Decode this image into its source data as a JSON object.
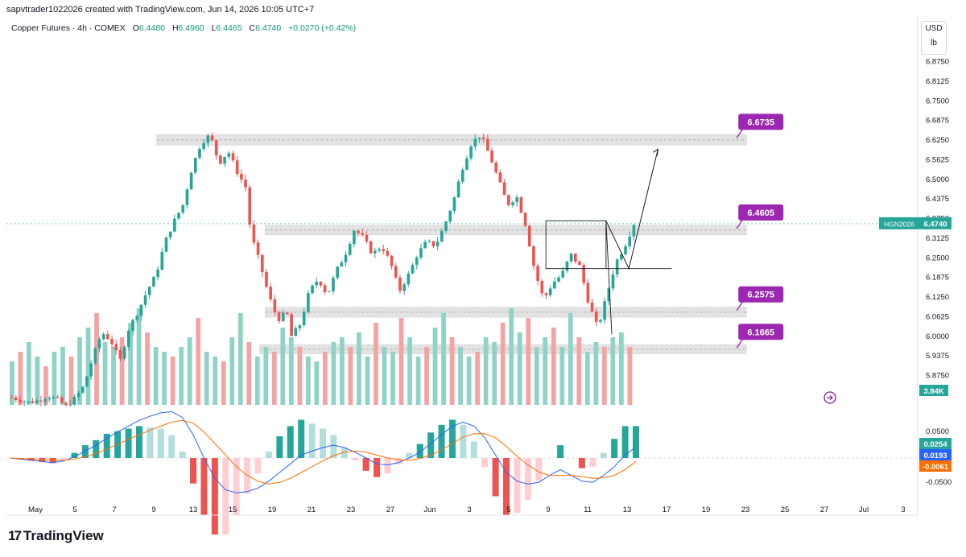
{
  "header": {
    "attribution": "sapvtrader1022026 created with TradingView.com, Jun 14, 2026 10:05 UTC+7"
  },
  "legend": {
    "instrument": "Copper Futures · 4h · COMEX",
    "open_label": "O",
    "open": "6.4480",
    "high_label": "H",
    "high": "6.4960",
    "low_label": "L",
    "low": "6.4465",
    "close_label": "C",
    "close": "6.4740",
    "change": "+0.0270 (+0.42%)"
  },
  "unit_box": {
    "currency": "USD",
    "unit": "lb"
  },
  "logo": {
    "mark": "17",
    "text": "TradingView"
  },
  "colors": {
    "up": "#26a69a",
    "down": "#ef5350",
    "vol_up": "#8fd3c7",
    "vol_down": "#f4a3a3",
    "annotation": "#9c27b0",
    "zone": "#e0e0e0",
    "macd_line": "#2962ff",
    "signal_line": "#ff6d00"
  },
  "chart_data": {
    "type": "candlestick",
    "timeframe": "4h",
    "ylim": [
      6.03,
      6.9
    ],
    "price_ticks": [
      "6.8750",
      "6.8125",
      "6.7500",
      "6.6875",
      "6.6250",
      "6.5625",
      "6.5000",
      "6.4375",
      "6.3750",
      "6.3125",
      "6.2500",
      "6.1875",
      "6.1250",
      "6.0625",
      "6.0000",
      "5.9375",
      "5.8750"
    ],
    "x_tick_labels": [
      "May",
      "5",
      "7",
      "9",
      "13",
      "15",
      "19",
      "21",
      "23",
      "27",
      "Jun",
      "3",
      "5",
      "9",
      "11",
      "13",
      "17",
      "19",
      "23",
      "25",
      "27",
      "Jul",
      "3"
    ],
    "current_price": {
      "symbol": "HGN2026",
      "value": "6.4740"
    },
    "volume_label": "3.84K",
    "price_path": [
      [
        0,
        6.052
      ],
      [
        4,
        6.045
      ],
      [
        8,
        6.04
      ],
      [
        12,
        6.045
      ],
      [
        16,
        6.055
      ],
      [
        20,
        6.048
      ],
      [
        24,
        6.03
      ],
      [
        28,
        6.05
      ],
      [
        32,
        6.08
      ],
      [
        36,
        6.15
      ],
      [
        40,
        6.21
      ],
      [
        44,
        6.19
      ],
      [
        48,
        6.14
      ],
      [
        52,
        6.22
      ],
      [
        56,
        6.26
      ],
      [
        60,
        6.31
      ],
      [
        64,
        6.35
      ],
      [
        68,
        6.43
      ],
      [
        72,
        6.48
      ],
      [
        76,
        6.52
      ],
      [
        80,
        6.61
      ],
      [
        84,
        6.67
      ],
      [
        88,
        6.69
      ],
      [
        92,
        6.62
      ],
      [
        96,
        6.65
      ],
      [
        100,
        6.6
      ],
      [
        104,
        6.56
      ],
      [
        106,
        6.45
      ],
      [
        110,
        6.38
      ],
      [
        114,
        6.3
      ],
      [
        118,
        6.24
      ],
      [
        122,
        6.26
      ],
      [
        124,
        6.2
      ],
      [
        128,
        6.23
      ],
      [
        132,
        6.31
      ],
      [
        136,
        6.34
      ],
      [
        140,
        6.3
      ],
      [
        144,
        6.36
      ],
      [
        148,
        6.4
      ],
      [
        152,
        6.46
      ],
      [
        156,
        6.44
      ],
      [
        160,
        6.4
      ],
      [
        164,
        6.42
      ],
      [
        168,
        6.38
      ],
      [
        172,
        6.31
      ],
      [
        176,
        6.35
      ],
      [
        180,
        6.4
      ],
      [
        184,
        6.43
      ],
      [
        188,
        6.42
      ],
      [
        192,
        6.47
      ],
      [
        196,
        6.53
      ],
      [
        200,
        6.61
      ],
      [
        204,
        6.67
      ],
      [
        208,
        6.69
      ],
      [
        212,
        6.64
      ],
      [
        216,
        6.58
      ],
      [
        220,
        6.52
      ],
      [
        224,
        6.54
      ],
      [
        228,
        6.47
      ],
      [
        232,
        6.36
      ],
      [
        236,
        6.29
      ],
      [
        240,
        6.33
      ],
      [
        244,
        6.35
      ],
      [
        248,
        6.4
      ],
      [
        252,
        6.37
      ],
      [
        256,
        6.28
      ],
      [
        260,
        6.22
      ],
      [
        264,
        6.3
      ],
      [
        268,
        6.38
      ],
      [
        272,
        6.42
      ],
      [
        276,
        6.474
      ]
    ],
    "volume_bars": [
      0.45,
      0.55,
      0.65,
      0.5,
      0.4,
      0.55,
      0.6,
      0.5,
      0.7,
      0.8,
      0.95,
      0.65,
      0.6,
      0.7,
      0.85,
      1.0,
      0.75,
      0.6,
      0.55,
      0.5,
      0.6,
      0.7,
      0.9,
      0.55,
      0.5,
      0.45,
      0.7,
      0.95,
      0.65,
      0.5,
      0.6,
      0.55,
      0.8,
      0.7,
      0.6,
      0.5,
      0.45,
      0.55,
      0.65,
      0.7,
      0.6,
      0.75,
      0.5,
      0.85,
      0.6,
      0.55,
      0.9,
      0.7,
      0.5,
      0.6,
      0.8,
      0.95,
      0.7,
      0.6,
      0.5,
      0.55,
      0.7,
      0.65,
      0.85,
      1.0,
      0.75,
      0.9,
      0.6,
      0.7,
      0.8,
      0.6,
      0.95,
      0.7,
      0.55,
      0.65,
      0.6,
      0.7,
      0.75,
      0.6
    ],
    "zones": [
      {
        "label": "6.6735",
        "low": 6.665,
        "high": 6.69,
        "from": 0.165,
        "to": 0.812
      },
      {
        "label": "6.4605",
        "low": 6.447,
        "high": 6.47,
        "from": 0.284,
        "to": 0.812
      },
      {
        "label": "6.2575",
        "low": 6.247,
        "high": 6.271,
        "from": 0.284,
        "to": 0.812
      },
      {
        "label": "6.1665",
        "low": 6.158,
        "high": 6.18,
        "from": 0.278,
        "to": 0.812
      }
    ],
    "macd": {
      "ticks": [
        "0.0500",
        "-0.0500"
      ],
      "labels": {
        "histogram": "0.0254",
        "macd": "0.0193",
        "signal": "-0.0061"
      },
      "macd_line": [
        0,
        -0.002,
        -0.004,
        -0.006,
        -0.008,
        -0.005,
        0.002,
        0.012,
        0.022,
        0.034,
        0.045,
        0.055,
        0.065,
        0.072,
        0.078,
        0.08,
        0.07,
        0.04,
        0.0,
        -0.035,
        -0.055,
        -0.06,
        -0.058,
        -0.052,
        -0.04,
        -0.025,
        -0.01,
        0.005,
        0.012,
        0.018,
        0.022,
        0.018,
        0.01,
        0.0,
        -0.01,
        -0.012,
        -0.008,
        0.0,
        0.01,
        0.025,
        0.04,
        0.055,
        0.062,
        0.055,
        0.035,
        0.005,
        -0.025,
        -0.04,
        -0.045,
        -0.042,
        -0.03,
        -0.02,
        -0.03,
        -0.04,
        -0.042,
        -0.03,
        -0.015,
        0.005,
        0.019
      ],
      "signal_line": [
        0,
        -0.001,
        -0.002,
        -0.003,
        -0.004,
        -0.004,
        -0.002,
        0.002,
        0.008,
        0.015,
        0.024,
        0.032,
        0.04,
        0.048,
        0.055,
        0.062,
        0.065,
        0.06,
        0.045,
        0.025,
        0.005,
        -0.015,
        -0.03,
        -0.04,
        -0.045,
        -0.042,
        -0.035,
        -0.025,
        -0.015,
        -0.005,
        0.004,
        0.01,
        0.012,
        0.01,
        0.005,
        0.0,
        -0.003,
        -0.004,
        -0.001,
        0.005,
        0.014,
        0.025,
        0.036,
        0.042,
        0.042,
        0.035,
        0.02,
        0.003,
        -0.012,
        -0.024,
        -0.03,
        -0.03,
        -0.03,
        -0.032,
        -0.035,
        -0.034,
        -0.03,
        -0.02,
        -0.006
      ]
    },
    "projection": [
      [
        0.658,
        6.481
      ],
      [
        0.683,
        6.365
      ],
      [
        0.715,
        6.655
      ]
    ],
    "measure_box": {
      "x0": 0.592,
      "x1": 0.658,
      "y0": 6.481,
      "y1": 6.365,
      "x_end": 0.73
    }
  }
}
